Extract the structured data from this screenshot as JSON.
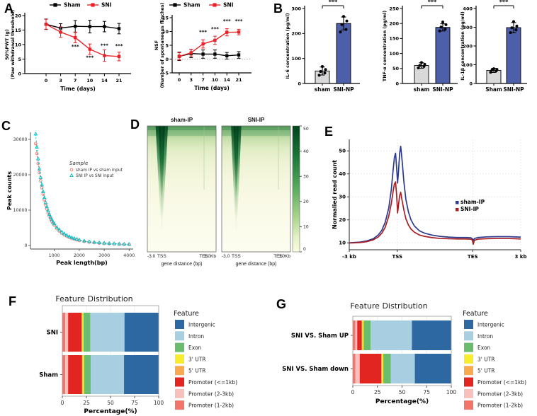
{
  "panels": {
    "A": "A",
    "B": "B",
    "C": "C",
    "D": "D",
    "E": "E",
    "F": "F",
    "G": "G"
  },
  "chart_data": [
    {
      "id": "A1",
      "type": "line",
      "xlabel": "Time (days)",
      "ylabel_lines": [
        "50%PWT (g)",
        "(Paw withdrawal threshold)"
      ],
      "ylim": [
        0,
        20
      ],
      "yticks": [
        0,
        5,
        10,
        15,
        20
      ],
      "x_categories": [
        0,
        3,
        7,
        10,
        14,
        21
      ],
      "series": [
        {
          "name": "Sham",
          "color": "#000000",
          "values": [
            17,
            15.7,
            16.3,
            16.2,
            16.2,
            15.5
          ],
          "errors": [
            1.8,
            1.5,
            2.0,
            2.2,
            1.8,
            1.8
          ]
        },
        {
          "name": "SNI",
          "color": "#EC2027",
          "values": [
            17,
            14.3,
            12.4,
            8.4,
            6.2,
            5.9
          ],
          "errors": [
            1.7,
            1.8,
            1.8,
            1.8,
            2.0,
            1.5
          ]
        }
      ],
      "sig": [
        {
          "x": 2,
          "y": 8.8,
          "text": "***"
        },
        {
          "x": 3,
          "y": 5.0,
          "text": "***"
        },
        {
          "x": 4,
          "y": 9.1,
          "text": "***"
        },
        {
          "x": 5,
          "y": 9.0,
          "text": "***"
        }
      ]
    },
    {
      "id": "A2",
      "type": "line",
      "xlabel": "Time (days)",
      "ylabel_lines": [
        "NSF",
        "(Number of spontaneous flinches)"
      ],
      "ylim": [
        -5,
        15
      ],
      "yticks": [
        -5,
        0,
        5,
        10,
        15
      ],
      "zeroline": 0,
      "x_categories": [
        0,
        3,
        7,
        10,
        14,
        21
      ],
      "series": [
        {
          "name": "Sham",
          "color": "#000000",
          "values": [
            1,
            2,
            1.8,
            1.8,
            1.2,
            1.5
          ],
          "errors": [
            1.5,
            1.5,
            1.5,
            1.5,
            1.2,
            1.2
          ]
        },
        {
          "name": "SNI",
          "color": "#EC2027",
          "values": [
            1,
            2.3,
            5.5,
            6.8,
            9.7,
            9.8
          ],
          "errors": [
            1.3,
            1.2,
            1.5,
            1.5,
            1.3,
            1.0
          ]
        }
      ],
      "sig": [
        {
          "x": 2,
          "y": 9.2,
          "text": "***"
        },
        {
          "x": 3,
          "y": 10.4,
          "text": "***"
        },
        {
          "x": 4,
          "y": 13.2,
          "text": "***"
        },
        {
          "x": 5,
          "y": 13.2,
          "text": "***"
        }
      ]
    },
    {
      "id": "B1",
      "type": "bar",
      "ylabel": "IL-6 concentration (pg/ml)",
      "ylim": [
        0,
        300
      ],
      "yticks": [
        0,
        100,
        200,
        300
      ],
      "categories": [
        "sham",
        "SNI-NP"
      ],
      "values": [
        50,
        240
      ],
      "errors": [
        16,
        26
      ],
      "bar_colors": [
        "#D9D9D9",
        "#4C5FA8"
      ],
      "dots": [
        [
          33,
          42,
          48,
          56,
          68
        ],
        [
          206,
          216,
          236,
          250,
          268
        ]
      ],
      "sig": "***"
    },
    {
      "id": "B2",
      "type": "bar",
      "ylabel": "TNF-α concentration (pg/ml)",
      "ylim": [
        0,
        250
      ],
      "yticks": [
        0,
        50,
        100,
        150,
        200,
        250
      ],
      "categories": [
        "sham",
        "SNI-NP"
      ],
      "values": [
        60,
        187
      ],
      "errors": [
        9,
        12
      ],
      "bar_colors": [
        "#D9D9D9",
        "#4C5FA8"
      ],
      "dots": [
        [
          52,
          57,
          60,
          64,
          70
        ],
        [
          175,
          181,
          188,
          196,
          205
        ]
      ],
      "sig": "***"
    },
    {
      "id": "B3",
      "type": "bar",
      "ylabel": "IL-1β concentration (pg/ml)",
      "ylim": [
        0,
        400
      ],
      "yticks": [
        0,
        100,
        200,
        300,
        400
      ],
      "categories": [
        "Sham",
        "SNI-NP"
      ],
      "values": [
        70,
        298
      ],
      "errors": [
        11,
        27
      ],
      "bar_colors": [
        "#D9D9D9",
        "#4C5FA8"
      ],
      "dots": [
        [
          60,
          67,
          72,
          75,
          79
        ],
        [
          271,
          286,
          297,
          306,
          330
        ]
      ],
      "sig": "***"
    },
    {
      "id": "C",
      "type": "scatter",
      "xlabel": "Peak length(bp)",
      "ylabel": "Peak counts",
      "xticks": [
        1000,
        2000,
        3000,
        4000
      ],
      "yticks": [
        0,
        10000,
        20000,
        30000
      ],
      "legend_title": "Sample",
      "x": [
        250,
        300,
        350,
        400,
        450,
        500,
        550,
        600,
        650,
        700,
        750,
        800,
        850,
        900,
        950,
        1000,
        1100,
        1200,
        1300,
        1400,
        1500,
        1600,
        1700,
        1800,
        1900,
        2000,
        2200,
        2400,
        2600,
        2800,
        3000,
        3200,
        3400,
        3600,
        3800,
        4000
      ],
      "series": [
        {
          "name": "sham IP vs sham input",
          "color": "#F8766D",
          "marker": "circle",
          "values": [
            28800,
            26000,
            23200,
            20600,
            18300,
            16300,
            14500,
            12900,
            11500,
            10300,
            9200,
            8300,
            7500,
            6800,
            6200,
            5700,
            4800,
            4100,
            3500,
            3000,
            2600,
            2300,
            2000,
            1800,
            1600,
            1400,
            1150,
            950,
            800,
            680,
            580,
            500,
            430,
            370,
            320,
            280
          ]
        },
        {
          "name": "SNI IP vs SNI input",
          "color": "#00BFC4",
          "marker": "triangle",
          "values": [
            31500,
            27800,
            24500,
            21600,
            19200,
            17100,
            15200,
            13500,
            12100,
            10900,
            9800,
            8800,
            8000,
            7300,
            6600,
            6100,
            5100,
            4400,
            3800,
            3300,
            2850,
            2500,
            2200,
            1950,
            1750,
            1550,
            1280,
            1060,
            900,
            770,
            660,
            570,
            490,
            420,
            370,
            320
          ]
        }
      ]
    },
    {
      "id": "D",
      "type": "heatmap",
      "maps": [
        {
          "title": "sham-IP"
        },
        {
          "title": "SNI-IP"
        }
      ],
      "xticks": [
        "-3.0",
        "TSS",
        "TES",
        "3.0Kb"
      ],
      "xlabel": "gene distance (bp)",
      "colorbar": {
        "min": 0,
        "max": 50,
        "ticks": [
          0,
          10,
          20,
          30,
          40,
          50
        ],
        "color_high": "#00441B",
        "color_low": "#FCFCE0"
      }
    },
    {
      "id": "E",
      "type": "line",
      "ylabel": "Normalied read count",
      "ylim": [
        7,
        55
      ],
      "yticks": [
        10,
        20,
        30,
        40,
        50
      ],
      "xticks": [
        {
          "pos": 0,
          "label": "-3 kb"
        },
        {
          "pos": 28,
          "label": "TSS"
        },
        {
          "pos": 72,
          "label": "TES"
        },
        {
          "pos": 100,
          "label": "3 kb"
        }
      ],
      "series": [
        {
          "name": "sham-IP",
          "color": "#2B3A8F",
          "points": [
            [
              0,
              10
            ],
            [
              6,
              10.3
            ],
            [
              10,
              10.8
            ],
            [
              14,
              11.8
            ],
            [
              17,
              13.5
            ],
            [
              19,
              15.5
            ],
            [
              21,
              19
            ],
            [
              23,
              25
            ],
            [
              24.5,
              33
            ],
            [
              25.5,
              41
            ],
            [
              26.3,
              47
            ],
            [
              27,
              49
            ],
            [
              27.6,
              43
            ],
            [
              28.2,
              36
            ],
            [
              28.8,
              42
            ],
            [
              29.4,
              49
            ],
            [
              30,
              52
            ],
            [
              30.8,
              46
            ],
            [
              31.8,
              37
            ],
            [
              33,
              29
            ],
            [
              34.5,
              23.5
            ],
            [
              36,
              20
            ],
            [
              38,
              17.3
            ],
            [
              41,
              15.2
            ],
            [
              44,
              14.2
            ],
            [
              48,
              13.4
            ],
            [
              53,
              12.8
            ],
            [
              58,
              12.5
            ],
            [
              63,
              12.3
            ],
            [
              68,
              12.3
            ],
            [
              71,
              12.2
            ],
            [
              71.8,
              11.8
            ],
            [
              72.3,
              10.9
            ],
            [
              73,
              11.9
            ],
            [
              75,
              12.3
            ],
            [
              80,
              12.6
            ],
            [
              86,
              12.7
            ],
            [
              93,
              12.7
            ],
            [
              100,
              12.5
            ]
          ]
        },
        {
          "name": "SNI-IP",
          "color": "#A91E22",
          "points": [
            [
              0,
              9.9
            ],
            [
              6,
              10.1
            ],
            [
              10,
              10.5
            ],
            [
              14,
              11.3
            ],
            [
              17,
              12.6
            ],
            [
              19,
              14.2
            ],
            [
              21,
              16.8
            ],
            [
              23,
              21.5
            ],
            [
              24.5,
              27
            ],
            [
              25.5,
              32
            ],
            [
              26.3,
              35.5
            ],
            [
              27,
              36.5
            ],
            [
              27.6,
              31
            ],
            [
              28.2,
              23
            ],
            [
              28.8,
              27
            ],
            [
              29.4,
              30.5
            ],
            [
              30,
              32
            ],
            [
              30.8,
              28.5
            ],
            [
              31.8,
              24.5
            ],
            [
              33,
              20.5
            ],
            [
              34.5,
              17.8
            ],
            [
              36,
              16
            ],
            [
              38,
              14.6
            ],
            [
              41,
              13.4
            ],
            [
              44,
              12.8
            ],
            [
              48,
              12.3
            ],
            [
              53,
              11.9
            ],
            [
              58,
              11.8
            ],
            [
              63,
              11.7
            ],
            [
              68,
              11.7
            ],
            [
              71,
              11.6
            ],
            [
              71.8,
              11.2
            ],
            [
              72.3,
              9.4
            ],
            [
              73,
              11.1
            ],
            [
              75,
              11.6
            ],
            [
              80,
              11.8
            ],
            [
              86,
              11.9
            ],
            [
              93,
              11.9
            ],
            [
              100,
              11.7
            ]
          ]
        }
      ]
    },
    {
      "id": "F",
      "type": "stacked-bar",
      "title": "Feature Distribution",
      "xlabel": "Percentage(%)",
      "xticks": [
        0,
        25,
        50,
        75,
        100
      ],
      "legend_title": "Feature",
      "segments": [
        "Promoter (1-2kb)",
        "Promoter (2-3kb)",
        "Promoter (<=1kb)",
        "5' UTR",
        "3' UTR",
        "Exon",
        "Intron",
        "Intergenic"
      ],
      "segment_colors": [
        "#F2756B",
        "#F8C0BD",
        "#E32522",
        "#F9A94F",
        "#F7EC2E",
        "#6ABD6E",
        "#A8CEE2",
        "#2E68A3"
      ],
      "bars": [
        {
          "label": "SNI",
          "values": [
            3,
            3,
            14,
            0.5,
            1.5,
            7,
            35.5,
            35.5
          ]
        },
        {
          "label": "Sham",
          "values": [
            3,
            3,
            14.5,
            0.5,
            1.5,
            7,
            34.5,
            36
          ]
        }
      ],
      "legend": [
        {
          "label": "Intergenic",
          "color": "#2E68A3"
        },
        {
          "label": "Intron",
          "color": "#A8CEE2"
        },
        {
          "label": "Exon",
          "color": "#6ABD6E"
        },
        {
          "label": "3' UTR",
          "color": "#F7EC2E"
        },
        {
          "label": "5' UTR",
          "color": "#F9A94F"
        },
        {
          "label": "Promoter (<=1kb)",
          "color": "#E32522"
        },
        {
          "label": "Promoter (2-3kb)",
          "color": "#F8C0BD"
        },
        {
          "label": "Promoter (1-2kb)",
          "color": "#F2756B"
        }
      ]
    },
    {
      "id": "G",
      "type": "stacked-bar",
      "title": "Feature Distribution",
      "xlabel": "Percentage(%)",
      "xticks": [
        0,
        25,
        50,
        75,
        100
      ],
      "legend_title": "Feature",
      "segments": [
        "Promoter (1-2kb)",
        "Promoter (2-3kb)",
        "Promoter (<=1kb)",
        "5' UTR",
        "3' UTR",
        "Exon",
        "Intron",
        "Intergenic"
      ],
      "segment_colors": [
        "#F2756B",
        "#F8C0BD",
        "#E32522",
        "#F9A94F",
        "#F7EC2E",
        "#6ABD6E",
        "#A8CEE2",
        "#2E68A3"
      ],
      "bars": [
        {
          "label": "SNI VS. Sham UP",
          "values": [
            2.5,
            2,
            4.5,
            0.5,
            1.5,
            7,
            42,
            40
          ]
        },
        {
          "label": "SNI VS. Sham down",
          "values": [
            2.5,
            4.5,
            22,
            0.5,
            1.5,
            7.5,
            24.5,
            37
          ]
        }
      ],
      "legend": [
        {
          "label": "Intergenic",
          "color": "#2E68A3"
        },
        {
          "label": "Intron",
          "color": "#A8CEE2"
        },
        {
          "label": "Exon",
          "color": "#6ABD6E"
        },
        {
          "label": "3' UTR",
          "color": "#F7EC2E"
        },
        {
          "label": "5' UTR",
          "color": "#F9A94F"
        },
        {
          "label": "Promoter (<=1kb)",
          "color": "#E32522"
        },
        {
          "label": "Promoter (2-3kb)",
          "color": "#F8C0BD"
        },
        {
          "label": "Promoter (1-2kb)",
          "color": "#F2756B"
        }
      ]
    }
  ]
}
